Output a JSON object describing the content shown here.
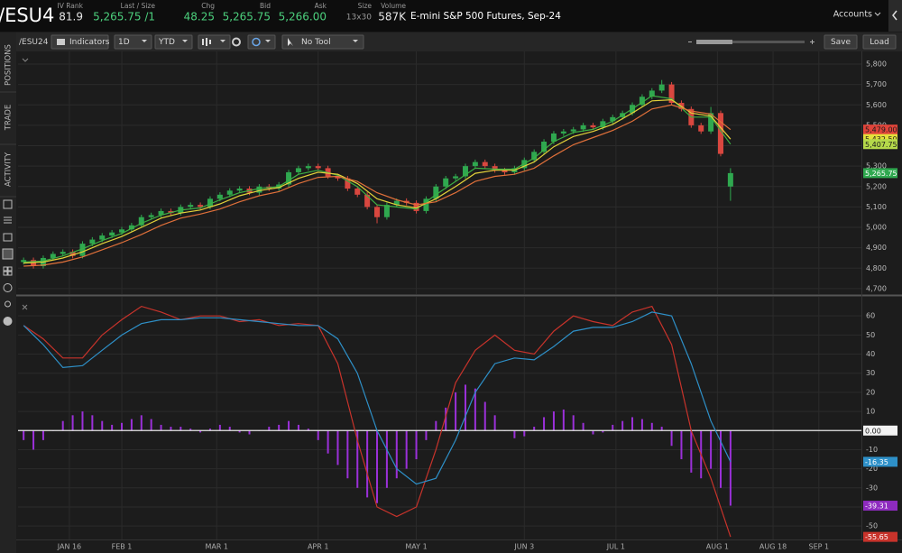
{
  "header": {
    "symbol": "/ESU4",
    "fields": [
      {
        "label": "IV Rank",
        "value": "81.9",
        "color": "#e6e6e6"
      },
      {
        "label": "Last / Size",
        "value": "5,265.75 /1",
        "color": "#4cd07d"
      },
      {
        "label": "Chg",
        "value": "48.25",
        "color": "#4cd07d"
      },
      {
        "label": "Bid",
        "value": "5,265.75",
        "color": "#4cd07d"
      },
      {
        "label": "Ask",
        "value": "5,266.00",
        "color": "#4cd07d"
      },
      {
        "label": "Size",
        "value": "13x30",
        "color": "#9a9a9a"
      },
      {
        "label": "Volume",
        "value": "587K",
        "color": "#e6e6e6"
      }
    ],
    "description": "E-mini S&P 500 Futures, Sep-24",
    "accounts": "Accounts"
  },
  "toolbar": {
    "symbol": "/ESU24",
    "indicators": "Indicators",
    "aggregation": "1D",
    "range": "YTD",
    "tool": "No Tool",
    "save": "Save",
    "load": "Load"
  },
  "sidebar": [
    "POSITIONS",
    "TRADE",
    "ACTIVITY"
  ],
  "chart_data": [
    {
      "type": "candlestick",
      "grid": true,
      "up_color": "#2fa84f",
      "down_color": "#d9473f",
      "xlim": [
        -0.7,
        257
      ],
      "ylim": [
        4673,
        5862
      ],
      "yticks": [
        {
          "value": 4700,
          "label": "4,700"
        },
        {
          "value": 4800,
          "label": "4,800"
        },
        {
          "value": 4900,
          "label": "4,900"
        },
        {
          "value": 5000,
          "label": "5,000"
        },
        {
          "value": 5100,
          "label": "5,100"
        },
        {
          "value": 5200,
          "label": "5,200"
        },
        {
          "value": 5300,
          "label": "5,300"
        },
        {
          "value": 5400,
          "label": "5,400"
        },
        {
          "value": 5500,
          "label": "5,500"
        },
        {
          "value": 5600,
          "label": "5,600"
        },
        {
          "value": 5700,
          "label": "5,700"
        },
        {
          "value": 5800,
          "label": "5,800"
        }
      ],
      "candles": {
        "x": [
          1,
          4,
          7,
          10,
          13,
          16,
          19,
          22,
          25,
          28,
          31,
          34,
          37,
          40,
          43,
          46,
          49,
          52,
          55,
          58,
          61,
          64,
          67,
          70,
          73,
          76,
          79,
          82,
          85,
          88,
          91,
          94,
          97,
          100,
          103,
          106,
          109,
          112,
          115,
          118,
          121,
          124,
          127,
          130,
          133,
          136,
          139,
          142,
          145,
          148,
          151,
          154,
          157,
          160,
          163,
          166,
          169,
          172,
          175,
          178,
          181,
          184,
          187,
          190,
          193,
          196,
          199,
          202,
          205,
          208,
          211,
          214,
          217
        ],
        "open": [
          4830,
          4840,
          4810,
          4850,
          4870,
          4880,
          4860,
          4920,
          4940,
          4960,
          4975,
          4990,
          5010,
          5050,
          5060,
          5080,
          5070,
          5100,
          5110,
          5100,
          5140,
          5160,
          5180,
          5190,
          5170,
          5200,
          5190,
          5210,
          5270,
          5290,
          5300,
          5290,
          5250,
          5240,
          5190,
          5160,
          5100,
          5050,
          5110,
          5130,
          5120,
          5080,
          5140,
          5200,
          5240,
          5250,
          5300,
          5320,
          5300,
          5280,
          5270,
          5290,
          5330,
          5370,
          5420,
          5460,
          5470,
          5480,
          5500,
          5490,
          5520,
          5540,
          5560,
          5600,
          5640,
          5670,
          5700,
          5610,
          5580,
          5500,
          5470,
          5560,
          5200
        ],
        "high": [
          4852,
          4852,
          4862,
          4882,
          4892,
          4892,
          4932,
          4952,
          4972,
          4987,
          5002,
          5022,
          5062,
          5072,
          5092,
          5092,
          5112,
          5122,
          5122,
          5152,
          5172,
          5192,
          5202,
          5202,
          5212,
          5212,
          5222,
          5282,
          5302,
          5312,
          5312,
          5302,
          5262,
          5252,
          5202,
          5172,
          5112,
          5122,
          5142,
          5142,
          5132,
          5152,
          5212,
          5252,
          5262,
          5312,
          5332,
          5332,
          5312,
          5292,
          5302,
          5342,
          5382,
          5432,
          5472,
          5482,
          5492,
          5512,
          5512,
          5532,
          5552,
          5572,
          5612,
          5652,
          5682,
          5722,
          5712,
          5622,
          5592,
          5512,
          5590,
          5572,
          5290
        ],
        "low": [
          4818,
          4798,
          4798,
          4838,
          4858,
          4848,
          4848,
          4908,
          4928,
          4948,
          4963,
          4978,
          4998,
          5038,
          5048,
          5058,
          5058,
          5088,
          5088,
          5088,
          5128,
          5148,
          5168,
          5158,
          5158,
          5178,
          5178,
          5198,
          5258,
          5278,
          5278,
          5238,
          5228,
          5178,
          5148,
          5088,
          5020,
          5038,
          5098,
          5108,
          5068,
          5068,
          5128,
          5188,
          5228,
          5238,
          5288,
          5288,
          5268,
          5258,
          5258,
          5278,
          5318,
          5358,
          5408,
          5448,
          5458,
          5468,
          5478,
          5478,
          5508,
          5528,
          5548,
          5588,
          5628,
          5658,
          5598,
          5568,
          5488,
          5458,
          5458,
          5348,
          5130
        ],
        "close": [
          4840,
          4810,
          4850,
          4870,
          4880,
          4860,
          4920,
          4940,
          4960,
          4975,
          4990,
          5010,
          5050,
          5060,
          5080,
          5070,
          5100,
          5110,
          5100,
          5140,
          5160,
          5180,
          5190,
          5170,
          5200,
          5190,
          5210,
          5270,
          5290,
          5300,
          5290,
          5250,
          5240,
          5190,
          5160,
          5100,
          5050,
          5110,
          5130,
          5120,
          5080,
          5140,
          5200,
          5240,
          5250,
          5300,
          5320,
          5300,
          5280,
          5270,
          5290,
          5330,
          5370,
          5420,
          5460,
          5470,
          5480,
          5500,
          5490,
          5520,
          5540,
          5560,
          5600,
          5640,
          5670,
          5700,
          5610,
          5580,
          5500,
          5470,
          5560,
          5360,
          5265.75
        ]
      },
      "ma_x": [
        1,
        7,
        13,
        19,
        25,
        31,
        37,
        43,
        49,
        55,
        61,
        67,
        73,
        79,
        85,
        91,
        97,
        103,
        109,
        115,
        121,
        127,
        133,
        139,
        145,
        151,
        157,
        163,
        169,
        175,
        181,
        187,
        193,
        199,
        205,
        211,
        217
      ],
      "moving_averages": [
        {
          "color": "#3cb043",
          "values": [
            4830,
            4835,
            4860,
            4895,
            4935,
            4970,
            5020,
            5060,
            5085,
            5095,
            5135,
            5170,
            5190,
            5200,
            5260,
            5280,
            5255,
            5200,
            5110,
            5100,
            5090,
            5160,
            5225,
            5290,
            5285,
            5285,
            5340,
            5420,
            5465,
            5480,
            5520,
            5580,
            5645,
            5630,
            5540,
            5540,
            5407.75
          ]
        },
        {
          "color": "#e3d23a",
          "values": [
            4825,
            4830,
            4850,
            4880,
            4920,
            4955,
            5000,
            5045,
            5070,
            5085,
            5115,
            5155,
            5180,
            5195,
            5240,
            5270,
            5260,
            5215,
            5140,
            5110,
            5095,
            5140,
            5200,
            5265,
            5280,
            5280,
            5320,
            5395,
            5445,
            5470,
            5505,
            5560,
            5620,
            5625,
            5560,
            5545,
            5432.5
          ]
        },
        {
          "color": "#e0703a",
          "values": [
            4810,
            4815,
            4830,
            4855,
            4890,
            4925,
            4965,
            5010,
            5045,
            5065,
            5090,
            5125,
            5155,
            5175,
            5215,
            5245,
            5250,
            5225,
            5170,
            5135,
            5110,
            5125,
            5170,
            5225,
            5250,
            5260,
            5290,
            5350,
            5405,
            5440,
            5475,
            5520,
            5580,
            5600,
            5570,
            5555,
            5479
          ]
        }
      ],
      "price_labels": [
        {
          "value": 5479,
          "label": "5,479.00",
          "color": "#e0443a",
          "text_color": "#1a1a1a"
        },
        {
          "value": 5432.5,
          "label": "5,432.50",
          "color": "#e3e03a",
          "text_color": "#1a1a1a"
        },
        {
          "value": 5407.75,
          "label": "5,407.75",
          "color": "#b5d94a",
          "text_color": "#1a1a1a"
        },
        {
          "value": 5265.75,
          "label": "5,265.75",
          "color": "#2fa84f",
          "text_color": "#ffffff"
        }
      ]
    },
    {
      "type": "line",
      "grid": true,
      "zero_line": true,
      "xlim": [
        -0.7,
        257
      ],
      "ylim": [
        -57,
        70
      ],
      "yticks": [
        60,
        50,
        40,
        30,
        20,
        10,
        0,
        -10,
        -20,
        -30,
        -40,
        -50
      ],
      "xticks": [
        {
          "value": 15,
          "label": "JAN 16"
        },
        {
          "value": 31,
          "label": "FEB 1"
        },
        {
          "value": 60,
          "label": "MAR 1"
        },
        {
          "value": 91,
          "label": "APR 1"
        },
        {
          "value": 121,
          "label": "MAY 1"
        },
        {
          "value": 154,
          "label": "JUN 3"
        },
        {
          "value": 182,
          "label": "JUL 1"
        },
        {
          "value": 213,
          "label": "AUG 1"
        },
        {
          "value": 230,
          "label": "AUG 18"
        },
        {
          "value": 244,
          "label": "SEP 1"
        }
      ],
      "x": [
        1,
        7,
        13,
        19,
        25,
        31,
        37,
        43,
        49,
        55,
        61,
        67,
        73,
        79,
        85,
        91,
        97,
        103,
        109,
        115,
        121,
        127,
        133,
        139,
        145,
        151,
        157,
        163,
        169,
        175,
        181,
        187,
        193,
        199,
        205,
        211,
        217
      ],
      "series": [
        {
          "color": "#c8332b",
          "values": [
            55,
            48,
            38,
            38,
            50,
            58,
            65,
            62,
            58,
            60,
            60,
            57,
            58,
            55,
            56,
            55,
            35,
            -5,
            -40,
            -45,
            -40,
            -10,
            25,
            42,
            50,
            42,
            40,
            52,
            60,
            57,
            55,
            62,
            65,
            45,
            0,
            -25,
            -55.65
          ]
        },
        {
          "color": "#2e90c8",
          "values": [
            55,
            45,
            33,
            34,
            42,
            50,
            56,
            58,
            58,
            59,
            59,
            58,
            57,
            56,
            55,
            55,
            48,
            30,
            0,
            -20,
            -28,
            -25,
            -5,
            20,
            35,
            38,
            37,
            44,
            52,
            54,
            54,
            57,
            62,
            60,
            35,
            5,
            -16.35
          ]
        }
      ],
      "histogram": {
        "color": "#9b30d9",
        "x": [
          1,
          4,
          7,
          10,
          13,
          16,
          19,
          22,
          25,
          28,
          31,
          34,
          37,
          40,
          43,
          46,
          49,
          52,
          55,
          58,
          61,
          64,
          67,
          70,
          73,
          76,
          79,
          82,
          85,
          88,
          91,
          94,
          97,
          100,
          103,
          106,
          109,
          112,
          115,
          118,
          121,
          124,
          127,
          130,
          133,
          136,
          139,
          142,
          145,
          148,
          151,
          154,
          157,
          160,
          163,
          166,
          169,
          172,
          175,
          178,
          181,
          184,
          187,
          190,
          193,
          196,
          199,
          202,
          205,
          208,
          211,
          214,
          217
        ],
        "values": [
          -5,
          -10,
          -5,
          0,
          5,
          8,
          10,
          8,
          5,
          3,
          4,
          6,
          8,
          6,
          3,
          2,
          2,
          1,
          -1,
          1,
          3,
          2,
          -1,
          -2,
          0,
          2,
          3,
          5,
          3,
          1,
          -5,
          -12,
          -18,
          -25,
          -30,
          -35,
          -38,
          -30,
          -25,
          -20,
          -15,
          -5,
          5,
          12,
          20,
          24,
          22,
          15,
          8,
          0,
          -4,
          -3,
          2,
          7,
          10,
          11,
          8,
          4,
          -2,
          -1,
          3,
          5,
          7,
          6,
          4,
          2,
          -8,
          -15,
          -22,
          -25,
          -20,
          -30,
          -39.31
        ]
      },
      "price_labels": [
        {
          "value": 0,
          "label": "0.00",
          "color": "#f2f2f2",
          "text_color": "#1a1a1a"
        },
        {
          "value": -16.35,
          "label": "-16.35",
          "color": "#2e90c8",
          "text_color": "#ffffff"
        },
        {
          "value": -39.31,
          "label": "-39.31",
          "color": "#8e2bbf",
          "text_color": "#ffffff"
        },
        {
          "value": -55.65,
          "label": "-55.65",
          "color": "#c8332b",
          "text_color": "#ffffff"
        }
      ]
    }
  ]
}
